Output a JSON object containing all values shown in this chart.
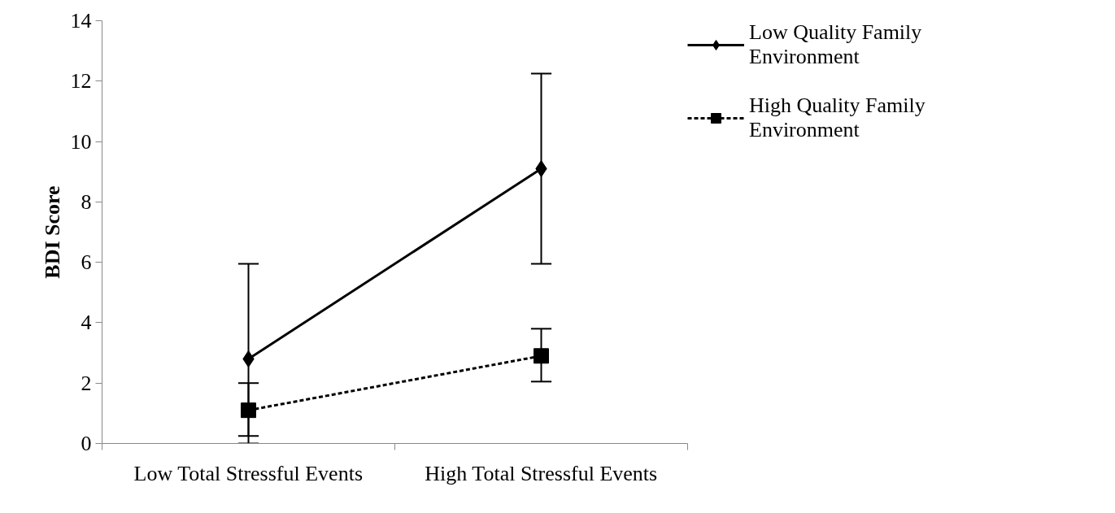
{
  "chart_data": {
    "type": "line",
    "ylabel": "BDI Score",
    "categories": [
      "Low Total Stressful Events",
      "High Total Stressful Events"
    ],
    "series": [
      {
        "name": "Low Quality Family Environment",
        "color": "#000000",
        "values": [
          2.8,
          9.1
        ],
        "errors": [
          [
            0,
            5.95
          ],
          [
            5.95,
            12.25
          ]
        ],
        "marker": "diamond",
        "line_style": "solid"
      },
      {
        "name": "High Quality Family Environment",
        "color": "#000000",
        "values": [
          1.1,
          2.9
        ],
        "errors": [
          [
            0.25,
            2.0
          ],
          [
            2.05,
            3.8
          ]
        ],
        "marker": "square",
        "line_style": "dashed"
      }
    ],
    "ylim": [
      0,
      14
    ],
    "yticks": [
      0,
      2,
      4,
      6,
      8,
      10,
      12,
      14
    ],
    "grid": false,
    "legend": "right"
  }
}
